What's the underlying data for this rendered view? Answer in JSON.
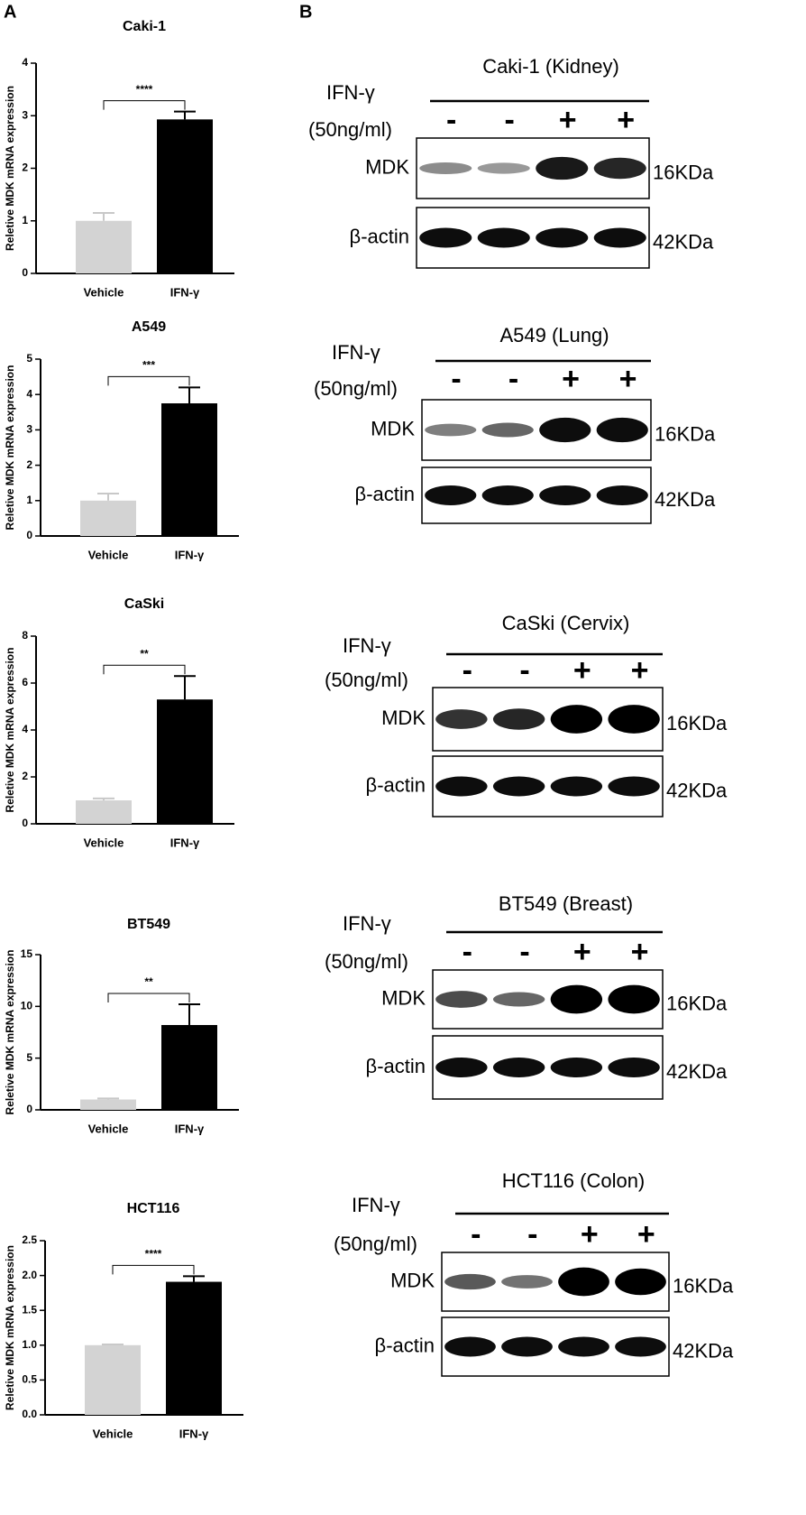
{
  "panel_labels": [
    "A",
    "B"
  ],
  "chart_data": [
    {
      "type": "bar",
      "title": "Caki-1",
      "ylabel": "Reletive MDK  mRNA expression",
      "categories": [
        "Vehicle",
        "IFN-γ"
      ],
      "values": [
        1,
        2.93
      ],
      "errors": [
        0.15,
        0.15
      ],
      "colors": [
        "#d3d3d3",
        "#000000"
      ],
      "ylim": [
        0,
        4
      ],
      "yticks": [
        0,
        1,
        2,
        3,
        4
      ],
      "significance": "****"
    },
    {
      "type": "bar",
      "title": "A549",
      "ylabel": "Reletive MDK mRNA expression",
      "categories": [
        "Vehicle",
        "IFN-γ"
      ],
      "values": [
        1,
        3.75
      ],
      "errors": [
        0.2,
        0.45
      ],
      "colors": [
        "#d3d3d3",
        "#000000"
      ],
      "ylim": [
        0,
        5
      ],
      "yticks": [
        0,
        1,
        2,
        3,
        4,
        5
      ],
      "significance": "***"
    },
    {
      "type": "bar",
      "title": "CaSki",
      "ylabel": "Reletive MDK mRNA expression",
      "categories": [
        "Vehicle",
        "IFN-γ"
      ],
      "values": [
        1,
        5.3
      ],
      "errors": [
        0.08,
        1.0
      ],
      "colors": [
        "#d3d3d3",
        "#000000"
      ],
      "ylim": [
        0,
        8
      ],
      "yticks": [
        0,
        2,
        4,
        6,
        8
      ],
      "significance": "**"
    },
    {
      "type": "bar",
      "title": "BT549",
      "ylabel": "Reletive MDK mRNA expression",
      "categories": [
        "Vehicle",
        "IFN-γ"
      ],
      "values": [
        1,
        8.2
      ],
      "errors": [
        0.1,
        2.0
      ],
      "colors": [
        "#d3d3d3",
        "#000000"
      ],
      "ylim": [
        0,
        15
      ],
      "yticks": [
        0,
        5,
        10,
        15
      ],
      "significance": "**"
    },
    {
      "type": "bar",
      "title": "HCT116",
      "ylabel": "Reletive MDK mRNA expression",
      "categories": [
        "Vehicle",
        "IFN-γ"
      ],
      "values": [
        1,
        1.91
      ],
      "errors": [
        0.01,
        0.08
      ],
      "colors": [
        "#d3d3d3",
        "#000000"
      ],
      "ylim": [
        0,
        2.5
      ],
      "yticks": [
        {
          "value": 0,
          "label": "0.0"
        },
        0.5,
        {
          "value": 1,
          "label": "1.0"
        },
        1.5,
        {
          "value": 2,
          "label": "2.0"
        },
        2.5
      ],
      "significance": "****"
    }
  ],
  "blots": [
    {
      "title": "Caki-1 (Kidney)",
      "treatment": "IFN-γ",
      "dose": "(50ng/ml)",
      "lanes": [
        "-",
        "-",
        "+",
        "+"
      ],
      "rows": [
        {
          "label": "MDK",
          "size": "16KDa"
        },
        {
          "label": "β-actin",
          "size": "42KDa"
        }
      ]
    },
    {
      "title": "A549 (Lung)",
      "treatment": "IFN-γ",
      "dose": "(50ng/ml)",
      "lanes": [
        "-",
        "-",
        "+",
        "+"
      ],
      "rows": [
        {
          "label": "MDK",
          "size": "16KDa"
        },
        {
          "label": "β-actin",
          "size": "42KDa"
        }
      ]
    },
    {
      "title": "CaSki (Cervix)",
      "treatment": "IFN-γ",
      "dose": "(50ng/ml)",
      "lanes": [
        "-",
        "-",
        "+",
        "+"
      ],
      "rows": [
        {
          "label": "MDK",
          "size": "16KDa"
        },
        {
          "label": "β-actin",
          "size": "42KDa"
        }
      ]
    },
    {
      "title": "BT549 (Breast)",
      "treatment": "IFN-γ",
      "dose": "(50ng/ml)",
      "lanes": [
        "-",
        "-",
        "+",
        "+"
      ],
      "rows": [
        {
          "label": "MDK",
          "size": "16KDa"
        },
        {
          "label": "β-actin",
          "size": "42KDa"
        }
      ]
    },
    {
      "title": "HCT116 (Colon)",
      "treatment": "IFN-γ",
      "dose": "(50ng/ml)",
      "lanes": [
        "-",
        "-",
        "+",
        "+"
      ],
      "rows": [
        {
          "label": "MDK",
          "size": "16KDa"
        },
        {
          "label": "β-actin",
          "size": "42KDa"
        }
      ]
    }
  ]
}
